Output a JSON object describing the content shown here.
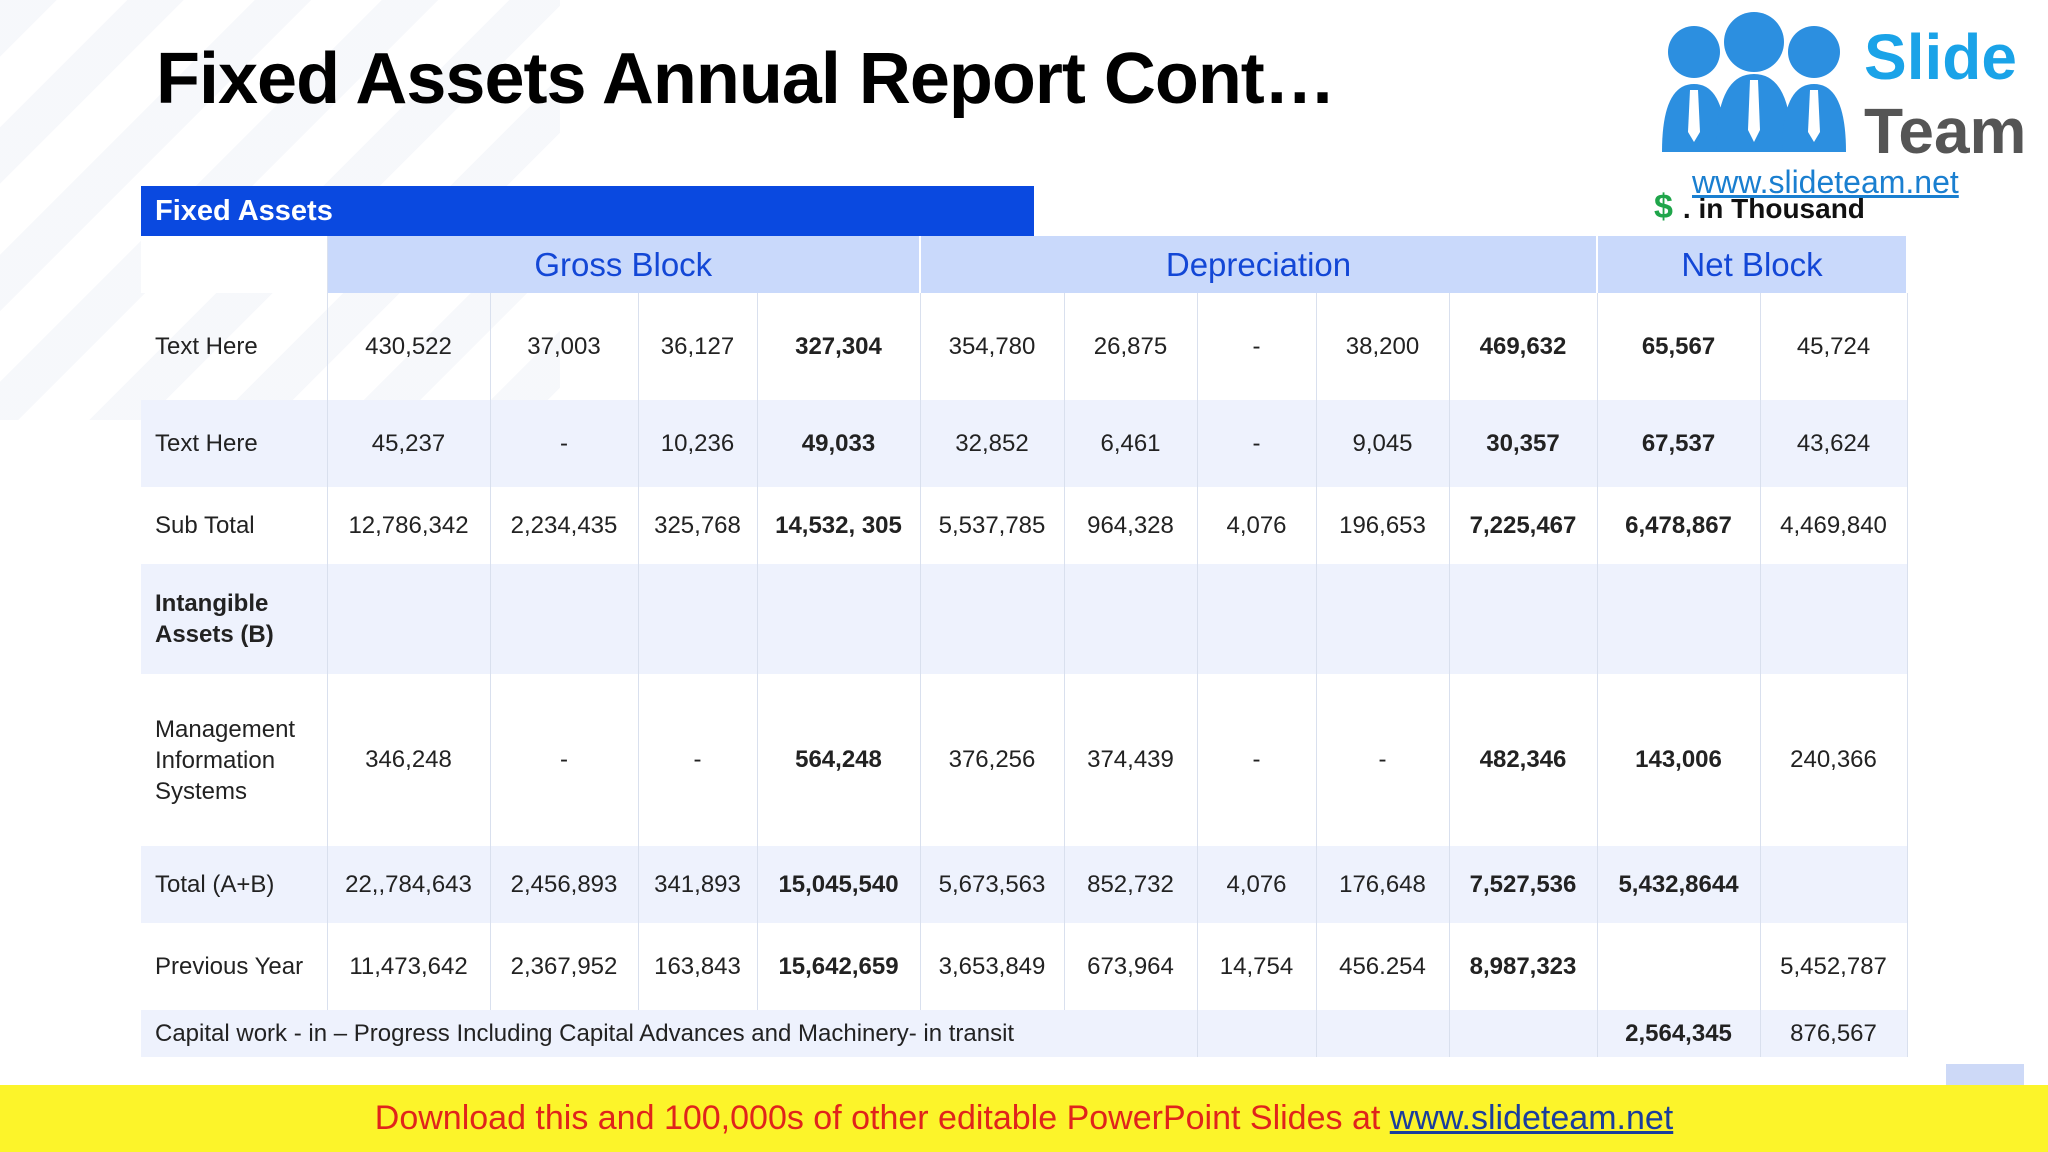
{
  "title": "Fixed Assets Annual Report Cont…",
  "logo": {
    "line1": "Slide",
    "line2": "Team",
    "url": "www.slideteam.net"
  },
  "unit": {
    "symbol": "$",
    "text": ". in Thousand"
  },
  "section_label": "Fixed Assets",
  "group_headers": [
    "Gross Block",
    "Depreciation",
    "Net Block"
  ],
  "rows": [
    {
      "label": "Text Here",
      "cells": [
        "430,522",
        "37,003",
        "36,127",
        "327,304",
        "354,780",
        "26,875",
        "-",
        "38,200",
        "469,632",
        "65,567",
        "45,724"
      ]
    },
    {
      "label": "Text Here",
      "cells": [
        "45,237",
        "-",
        "10,236",
        "49,033",
        "32,852",
        "6,461",
        "-",
        "9,045",
        "30,357",
        "67,537",
        "43,624"
      ]
    },
    {
      "label": "Sub Total",
      "cells": [
        "12,786,342",
        "2,234,435",
        "325,768",
        "14,532, 305",
        "5,537,785",
        "964,328",
        "4,076",
        "196,653",
        "7,225,467",
        "6,478,867",
        "4,469,840"
      ]
    },
    {
      "label": "Intangible Assets (B)",
      "cells": [
        "",
        "",
        "",
        "",
        "",
        "",
        "",
        "",
        "",
        "",
        ""
      ]
    },
    {
      "label": "Management Information Systems",
      "cells": [
        "346,248",
        "-",
        "-",
        "564,248",
        "376,256",
        "374,439",
        "-",
        "-",
        "482,346",
        "143,006",
        "240,366"
      ]
    },
    {
      "label": "Total (A+B)",
      "cells": [
        "22,,784,643",
        "2,456,893",
        "341,893",
        "15,045,540",
        "5,673,563",
        "852,732",
        "4,076",
        "176,648",
        "7,527,536",
        "5,432,8644",
        ""
      ]
    },
    {
      "label": "Previous Year",
      "cells": [
        "11,473,642",
        "2,367,952",
        "163,843",
        "15,642,659",
        "3,653,849",
        "673,964",
        "14,754",
        "456.254",
        "8,987,323",
        "",
        "5,452,787"
      ]
    }
  ],
  "capital_row": {
    "label": "Capital work - in – Progress Including Capital Advances and Machinery- in transit",
    "net1": "2,564,345",
    "net2": "876,567"
  },
  "footer": {
    "text": "Download this and 100,000s of other editable PowerPoint Slides at ",
    "link": "www.slideteam.net"
  }
}
